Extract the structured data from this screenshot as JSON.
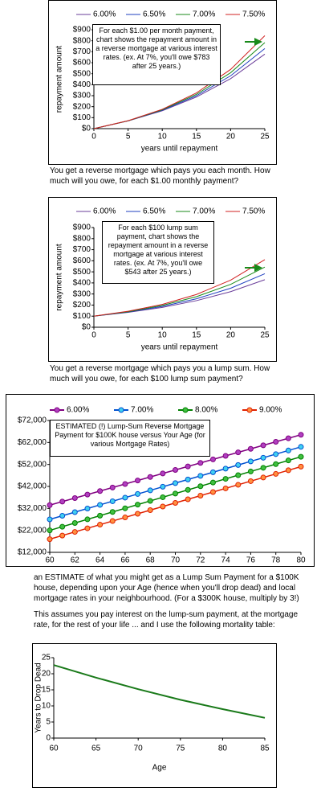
{
  "chart_data": [
    {
      "type": "line",
      "x_label": "years until repayment",
      "y_label": "repayment amount",
      "annotation": "For each $1.00 per month payment, chart shows the repayment amount in a reverse mortgage at various interest rates. (ex. At 7%, you'll owe $783 after 25 years.)",
      "x": [
        0,
        5,
        10,
        15,
        20,
        25
      ],
      "series": [
        {
          "name": "6.00%",
          "color": "#6a3d9a",
          "values": [
            0,
            70,
            163,
            288,
            455,
            678
          ]
        },
        {
          "name": "6.50%",
          "color": "#1f3fbf",
          "values": [
            0,
            71,
            167,
            300,
            481,
            729
          ]
        },
        {
          "name": "7.00%",
          "color": "#1a8a1a",
          "values": [
            0,
            71,
            172,
            312,
            509,
            783
          ]
        },
        {
          "name": "7.50%",
          "color": "#d02020",
          "values": [
            0,
            72,
            176,
            325,
            539,
            846
          ]
        }
      ],
      "xlim": [
        0,
        25
      ],
      "xticks": [
        0,
        5,
        10,
        15,
        20,
        25
      ],
      "ylim": [
        0,
        900
      ],
      "yticks": [
        {
          "value": 0,
          "label": "$0"
        },
        {
          "value": 100,
          "label": "$100"
        },
        {
          "value": 200,
          "label": "$200"
        },
        {
          "value": 300,
          "label": "$300"
        },
        {
          "value": 400,
          "label": "$400"
        },
        {
          "value": 500,
          "label": "$500"
        },
        {
          "value": 600,
          "label": "$600"
        },
        {
          "value": 700,
          "label": "$700"
        },
        {
          "value": 800,
          "label": "$800"
        },
        {
          "value": 900,
          "label": "$900"
        }
      ],
      "grid": false,
      "markers": false
    },
    {
      "type": "line",
      "x_label": "years until repayment",
      "y_label": "repayment amount",
      "annotation": "For each $100 lump sum payment, chart shows the repayment amount in a reverse mortgage at various interest rates. (ex. At 7%, you'll owe $543 after 25 years.)",
      "x": [
        0,
        5,
        10,
        15,
        20,
        25
      ],
      "series": [
        {
          "name": "6.00%",
          "color": "#6a3d9a",
          "values": [
            100,
            134,
            179,
            240,
            321,
            429
          ]
        },
        {
          "name": "6.50%",
          "color": "#1f3fbf",
          "values": [
            100,
            137,
            188,
            257,
            352,
            483
          ]
        },
        {
          "name": "7.00%",
          "color": "#1a8a1a",
          "values": [
            100,
            140,
            197,
            276,
            387,
            543
          ]
        },
        {
          "name": "7.50%",
          "color": "#d02020",
          "values": [
            100,
            144,
            206,
            296,
            425,
            610
          ]
        }
      ],
      "xlim": [
        0,
        25
      ],
      "xticks": [
        0,
        5,
        10,
        15,
        20,
        25
      ],
      "ylim": [
        0,
        900
      ],
      "yticks": [
        {
          "value": 0,
          "label": "$0"
        },
        {
          "value": 100,
          "label": "$100"
        },
        {
          "value": 200,
          "label": "$200"
        },
        {
          "value": 300,
          "label": "$300"
        },
        {
          "value": 400,
          "label": "$400"
        },
        {
          "value": 500,
          "label": "$500"
        },
        {
          "value": 600,
          "label": "$600"
        },
        {
          "value": 700,
          "label": "$700"
        },
        {
          "value": 800,
          "label": "$800"
        },
        {
          "value": 900,
          "label": "$900"
        }
      ],
      "grid": false,
      "markers": false
    },
    {
      "type": "line",
      "annotation": "ESTIMATED (!) Lump-Sum Reverse Mortgage Payment for $100K house versus Your Age (for various Mortgage Rates)",
      "x": [
        60,
        61,
        62,
        63,
        64,
        65,
        66,
        67,
        68,
        69,
        70,
        71,
        72,
        73,
        74,
        75,
        76,
        77,
        78,
        79,
        80
      ],
      "series": [
        {
          "name": "6.00%",
          "color": "#800080",
          "marker_color": "#b040c0",
          "values": [
            33500,
            35100,
            36700,
            38300,
            39900,
            41500,
            43100,
            44700,
            46300,
            47900,
            49500,
            51100,
            52700,
            54300,
            55900,
            57500,
            59100,
            60700,
            62300,
            63900,
            65500
          ]
        },
        {
          "name": "7.00%",
          "color": "#0050d0",
          "marker_color": "#40d0f0",
          "values": [
            27000,
            28650,
            30300,
            31950,
            33600,
            35250,
            36900,
            38550,
            40200,
            41850,
            43500,
            45150,
            46800,
            48450,
            50100,
            51750,
            53400,
            55050,
            56700,
            58350,
            60000
          ]
        },
        {
          "name": "8.00%",
          "color": "#008000",
          "marker_color": "#40c040",
          "values": [
            22000,
            23675,
            25350,
            27025,
            28700,
            30375,
            32050,
            33725,
            35400,
            37075,
            38750,
            40425,
            42100,
            43775,
            45450,
            47125,
            48800,
            50475,
            52150,
            53825,
            55500
          ]
        },
        {
          "name": "9.00%",
          "color": "#e02000",
          "marker_color": "#ff9040",
          "values": [
            18000,
            19650,
            21300,
            22950,
            24600,
            26250,
            27900,
            29550,
            31200,
            32850,
            34500,
            36150,
            37800,
            39450,
            41100,
            42750,
            44400,
            46050,
            47700,
            49350,
            51000
          ]
        }
      ],
      "xlim": [
        60,
        80
      ],
      "xticks": [
        60,
        62,
        64,
        66,
        68,
        70,
        72,
        74,
        76,
        78,
        80
      ],
      "ylim": [
        12000,
        72000
      ],
      "yticks": [
        {
          "value": 12000,
          "label": "$12,000"
        },
        {
          "value": 22000,
          "label": "$22,000"
        },
        {
          "value": 32000,
          "label": "$32,000"
        },
        {
          "value": 42000,
          "label": "$42,000"
        },
        {
          "value": 52000,
          "label": "$52,000"
        },
        {
          "value": 62000,
          "label": "$62,000"
        },
        {
          "value": 72000,
          "label": "$72,000"
        }
      ],
      "grid": false,
      "markers": true
    },
    {
      "type": "line",
      "x_label": "Age",
      "y_label": "Years to Drop Dead",
      "x": [
        60,
        65,
        70,
        75,
        80,
        85
      ],
      "series": [
        {
          "color": "#1a7a1a",
          "values": [
            22.7,
            18.8,
            15.2,
            11.9,
            9.0,
            6.3
          ]
        }
      ],
      "xlim": [
        60,
        85
      ],
      "xticks": [
        60,
        65,
        70,
        75,
        80,
        85
      ],
      "ylim": [
        0,
        25
      ],
      "yticks": [
        0,
        5,
        10,
        15,
        20,
        25
      ],
      "grid": false,
      "markers": false
    }
  ],
  "captions": [
    "You get a reverse mortgage which pays you each month. How much will you owe, for each $1.00 monthly payment?",
    "You get a reverse mortgage which pays you a lump sum. How much will you owe, for each $100 lump sum payment?",
    "an ESTIMATE of what you might get as a Lump Sum Payment for a $100K house, depending upon your Age (hence when you'll drop dead) and local mortgage rates in your neighbourhood. (For a $300K house, multiply by 3!)",
    "This assumes you pay interest on the lump-sum payment, at the mortgage rate, for the rest of your life ... and I use the following mortality table:"
  ]
}
